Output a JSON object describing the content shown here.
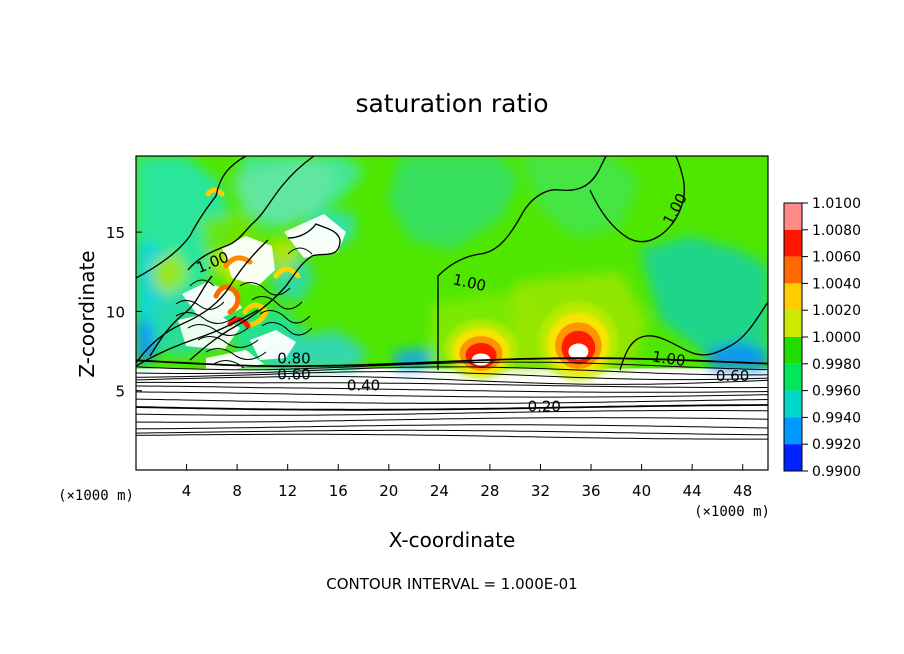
{
  "chart_data": {
    "type": "heatmap",
    "title": "saturation ratio",
    "xlabel": "X-coordinate",
    "ylabel": "Z-coordinate",
    "x_unit": "(×1000 m)",
    "y_unit": "(×1000 m)",
    "xlim": [
      0,
      50
    ],
    "ylim": [
      0,
      19.8
    ],
    "x_ticks": [
      4,
      8,
      12,
      16,
      20,
      24,
      28,
      32,
      36,
      40,
      44,
      48
    ],
    "y_ticks": [
      5,
      10,
      15
    ],
    "colorbar": {
      "min": 0.99,
      "max": 1.01,
      "labels": [
        "1.0100",
        "1.0080",
        "1.0060",
        "1.0040",
        "1.0020",
        "1.0000",
        "0.9980",
        "0.9960",
        "0.9940",
        "0.9920",
        "0.9900"
      ],
      "colors": [
        "#8a2be2",
        "#0000b4",
        "#0022ff",
        "#0098ff",
        "#00d8c8",
        "#00e85a",
        "#22dd00",
        "#ccea00",
        "#ffcc00",
        "#ff6a00",
        "#ff1500",
        "#ff8a8a"
      ]
    },
    "contour_labels": [
      {
        "text": "1.00",
        "x": 43,
        "y": 16.3,
        "angle": -62
      },
      {
        "text": "1.00",
        "x": 6.2,
        "y": 12.8,
        "angle": -22
      },
      {
        "text": "1.00",
        "x": 26.3,
        "y": 11.5,
        "angle": 12
      },
      {
        "text": "1.00",
        "x": 42.1,
        "y": 6.7,
        "angle": 8
      },
      {
        "text": "0.80",
        "x": 12.5,
        "y": 6.7,
        "angle": 0
      },
      {
        "text": "0.60",
        "x": 12.5,
        "y": 5.7,
        "angle": 0
      },
      {
        "text": "0.60",
        "x": 47.2,
        "y": 5.6,
        "angle": 0
      },
      {
        "text": "0.40",
        "x": 18,
        "y": 5.0,
        "angle": 0
      },
      {
        "text": "0.20",
        "x": 32.3,
        "y": 3.7,
        "angle": 0
      }
    ]
  },
  "footer": {
    "contour_interval": "CONTOUR INTERVAL = 1.000E-01"
  }
}
